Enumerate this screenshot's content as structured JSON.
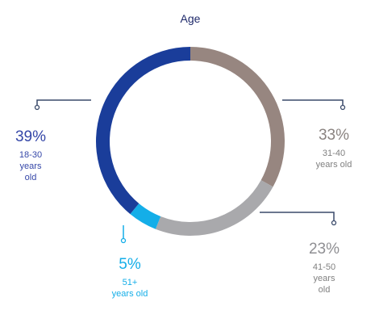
{
  "chart_data": {
    "type": "pie",
    "title": "Age",
    "categories": [
      "18-30 years old",
      "31-40 years old",
      "41-50 years old",
      "51+ years old"
    ],
    "values": [
      39,
      33,
      23,
      5
    ],
    "series": [
      {
        "label": "39%",
        "category_lines": [
          "18-30",
          "years",
          "old"
        ],
        "color": "#1a3d9a"
      },
      {
        "label": "33%",
        "category_lines": [
          "31-40",
          "years old"
        ],
        "color": "#978680"
      },
      {
        "label": "23%",
        "category_lines": [
          "41-50",
          "years",
          "old"
        ],
        "color": "#a9a9ac"
      },
      {
        "label": "5%",
        "category_lines": [
          "51+",
          "years old"
        ],
        "color": "#14aee8"
      }
    ],
    "label_colors": {
      "39%": "#3547a8",
      "33%": "#8a8380",
      "23%": "#8f8f93",
      "5%": "#14aee8"
    },
    "start_angle_deg": 0,
    "direction": "clockwise",
    "connector_color": "#3a4a6a"
  }
}
